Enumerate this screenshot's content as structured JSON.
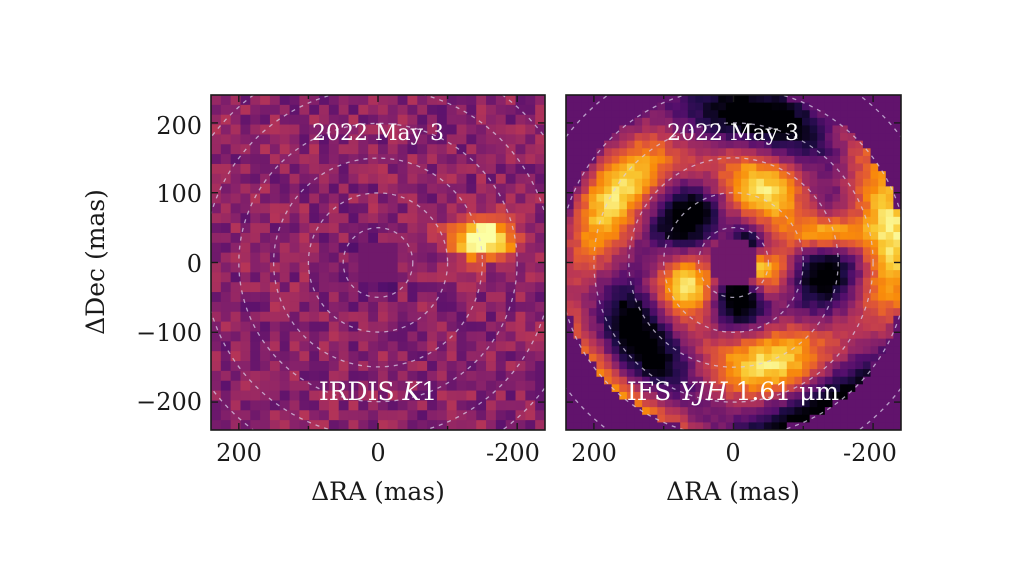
{
  "chart_data": [
    {
      "type": "heatmap",
      "date_label": "2022 May 3",
      "instrument_label": "IRDIS ",
      "instrument_italic": "K",
      "instrument_suffix": "1",
      "xlabel": "ΔRA (mas)",
      "ylabel": "ΔDec (mas)",
      "xlim": [
        240,
        -240
      ],
      "ylim": [
        -240,
        240
      ],
      "x_ticks": [
        "200",
        "0",
        "-200"
      ],
      "y_ticks": [
        "200",
        "100",
        "0",
        "−100",
        "−200"
      ],
      "colormap": "inferno",
      "companion": {
        "ra": -150,
        "dec": 35
      },
      "grid_rings_mas": [
        50,
        100,
        150,
        200,
        250,
        300
      ]
    },
    {
      "type": "heatmap",
      "date_label": "2022 May 3",
      "instrument_label": "IFS ",
      "instrument_italic": "YJH",
      "instrument_suffix": " 1.61 μm",
      "xlabel": "ΔRA (mas)",
      "xlim": [
        240,
        -240
      ],
      "ylim": [
        -240,
        240
      ],
      "x_ticks": [
        "200",
        "0",
        "-200"
      ],
      "colormap": "inferno",
      "companion": {
        "ra": -135,
        "dec": 40
      },
      "grid_rings_mas": [
        50,
        100,
        150,
        200,
        250,
        300
      ]
    }
  ]
}
